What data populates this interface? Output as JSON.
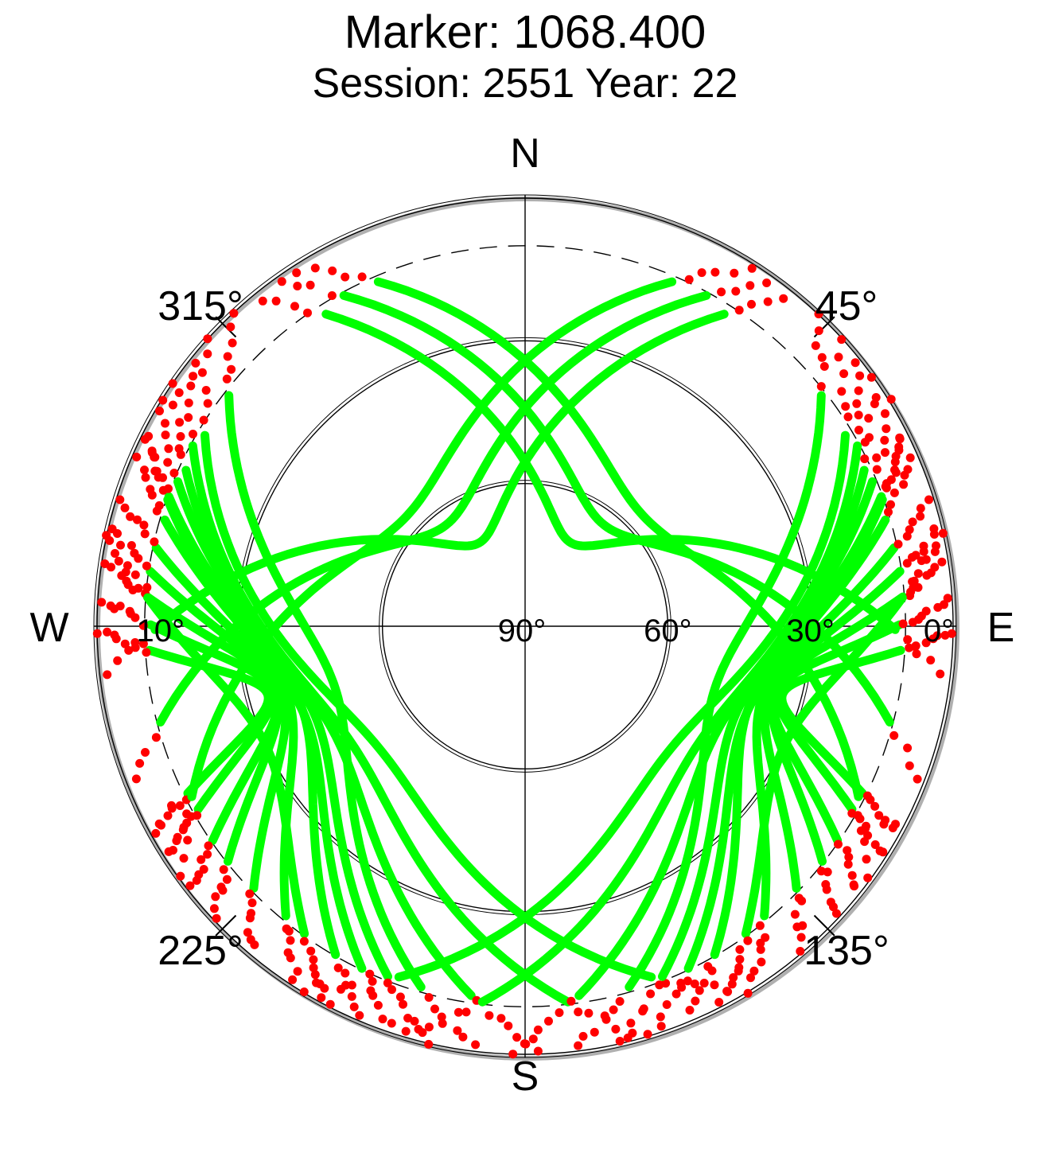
{
  "chart_data": {
    "type": "scatter",
    "projection": "polar-skyplot",
    "title": "Marker: 1068.400",
    "subtitle": "Session: 2551 Year: 22",
    "directions": {
      "north": "N",
      "east": "E",
      "south": "S",
      "west": "W"
    },
    "azimuth_labels": [
      {
        "azimuth": 45,
        "text": "45°"
      },
      {
        "azimuth": 135,
        "text": "135°"
      },
      {
        "azimuth": 225,
        "text": "225°"
      },
      {
        "azimuth": 315,
        "text": "315°"
      }
    ],
    "elevation_labels": [
      {
        "elevation": 90,
        "text": "90°",
        "side": "center"
      },
      {
        "elevation": 60,
        "text": "60°",
        "side": "east"
      },
      {
        "elevation": 30,
        "text": "30°",
        "side": "east"
      },
      {
        "elevation": 0,
        "text": "0°",
        "side": "east"
      },
      {
        "elevation": 10,
        "text": "10°",
        "side": "west"
      }
    ],
    "elevation_range": [
      0,
      90
    ],
    "elevation_rings": [
      60,
      30,
      0
    ],
    "cutoff_elevation": 10,
    "colors": {
      "accepted": "#00ff00",
      "rejected": "#ff0000",
      "axes": "#000000",
      "horizon_shade": "#b0b0b0"
    },
    "series": [
      {
        "status": "accepted",
        "color": "#00ff00",
        "tracks": [
          {
            "az_start": 318,
            "az_end": 100,
            "el_max": 70
          },
          {
            "az_start": 321,
            "az_end": 115,
            "el_max": 63
          },
          {
            "az_start": 324,
            "az_end": 130,
            "el_max": 56
          },
          {
            "az_start": 316,
            "az_end": 145,
            "el_max": 50
          },
          {
            "az_start": 312,
            "az_end": 160,
            "el_max": 46
          },
          {
            "az_start": 308,
            "az_end": 175,
            "el_max": 44
          },
          {
            "az_start": 304,
            "az_end": 190,
            "el_max": 42
          },
          {
            "az_start": 300,
            "az_end": 200,
            "el_max": 40
          },
          {
            "az_start": 296,
            "az_end": 210,
            "el_max": 38
          },
          {
            "az_start": 290,
            "az_end": 218,
            "el_max": 37
          },
          {
            "az_start": 285,
            "az_end": 225,
            "el_max": 36
          },
          {
            "az_start": 280,
            "az_end": 230,
            "el_max": 36
          },
          {
            "az_start": 275,
            "az_end": 236,
            "el_max": 35
          },
          {
            "az_start": 270,
            "az_end": 240,
            "el_max": 34
          },
          {
            "az_start": 42,
            "az_end": 260,
            "el_max": 70
          },
          {
            "az_start": 39,
            "az_end": 245,
            "el_max": 63
          },
          {
            "az_start": 36,
            "az_end": 230,
            "el_max": 56
          },
          {
            "az_start": 44,
            "az_end": 215,
            "el_max": 50
          },
          {
            "az_start": 48,
            "az_end": 200,
            "el_max": 46
          },
          {
            "az_start": 52,
            "az_end": 185,
            "el_max": 44
          },
          {
            "az_start": 56,
            "az_end": 170,
            "el_max": 42
          },
          {
            "az_start": 60,
            "az_end": 160,
            "el_max": 40
          },
          {
            "az_start": 64,
            "az_end": 150,
            "el_max": 38
          },
          {
            "az_start": 70,
            "az_end": 142,
            "el_max": 37
          },
          {
            "az_start": 75,
            "az_end": 135,
            "el_max": 36
          },
          {
            "az_start": 80,
            "az_end": 130,
            "el_max": 36
          },
          {
            "az_start": 85,
            "az_end": 124,
            "el_max": 35
          },
          {
            "az_start": 90,
            "az_end": 120,
            "el_max": 34
          },
          {
            "az_start": 184,
            "az_end": 320,
            "el_max": 48
          },
          {
            "az_start": 176,
            "az_end": 40,
            "el_max": 48
          },
          {
            "az_start": 195,
            "az_end": 300,
            "el_max": 40
          },
          {
            "az_start": 165,
            "az_end": 60,
            "el_max": 40
          },
          {
            "az_start": 205,
            "az_end": 285,
            "el_max": 30
          },
          {
            "az_start": 155,
            "az_end": 75,
            "el_max": 30
          }
        ]
      },
      {
        "status": "rejected",
        "color": "#ff0000",
        "elevation_below": 10
      }
    ]
  }
}
